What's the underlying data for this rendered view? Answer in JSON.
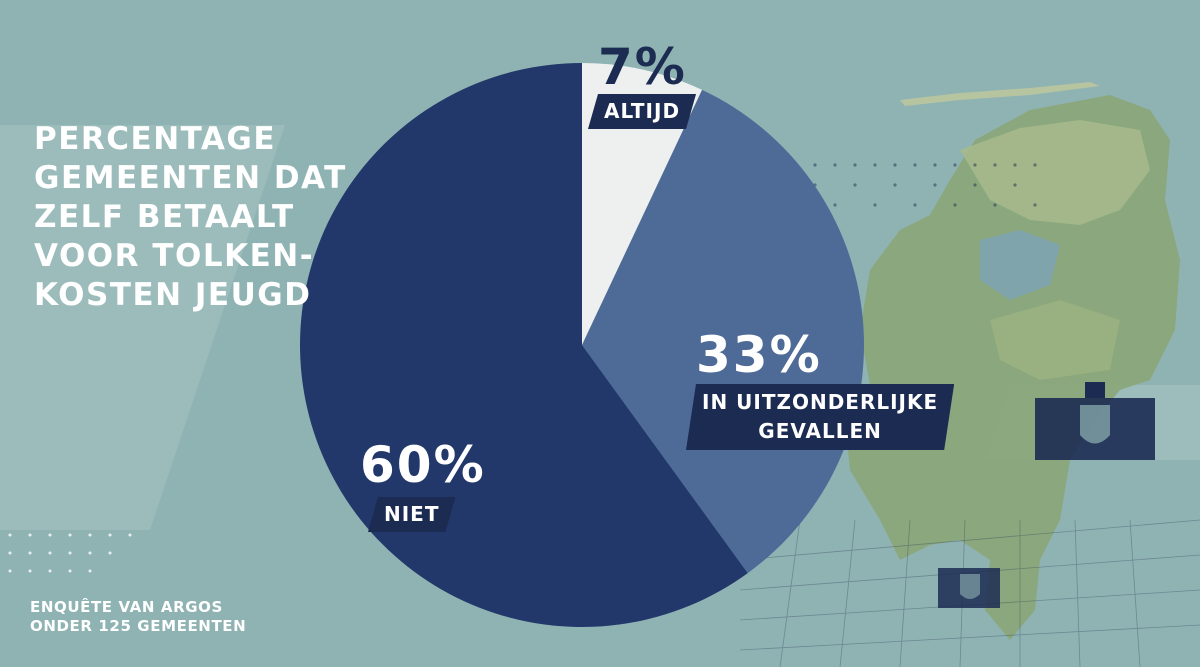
{
  "title": "PERCENTAGE\nGEMEENTEN DAT\nZELF BETAALT\nVOOR TOLKEN-\nKOSTEN JEUGD",
  "source": "ENQUÊTE VAN ARGOS\nONDER 125 GEMEENTEN",
  "colors": {
    "background": "#8fb3b3",
    "altijd": "#eef0f0",
    "uitzonderlijk": "#4e6b98",
    "niet": "#22386a",
    "label_bg": "#1c2b52",
    "text": "#ffffff"
  },
  "chart_data": {
    "type": "pie",
    "title": "PERCENTAGE GEMEENTEN DAT ZELF BETAALT VOOR TOLKEN-KOSTEN JEUGD",
    "slices": [
      {
        "label": "ALTIJD",
        "value": 7,
        "display": "7%",
        "color": "#eef0f0"
      },
      {
        "label": "IN UITZONDERLIJKE GEVALLEN",
        "value": 33,
        "display": "33%",
        "color": "#4e6b98"
      },
      {
        "label": "NIET",
        "value": 60,
        "display": "60%",
        "color": "#22386a"
      }
    ],
    "labels": {
      "altijd": {
        "pct": "7%",
        "text": "ALTIJD"
      },
      "uitzonderlijk": {
        "pct": "33%",
        "text": "IN UITZONDERLIJKE\nGEVALLEN"
      },
      "niet": {
        "pct": "60%",
        "text": "NIET"
      }
    }
  }
}
